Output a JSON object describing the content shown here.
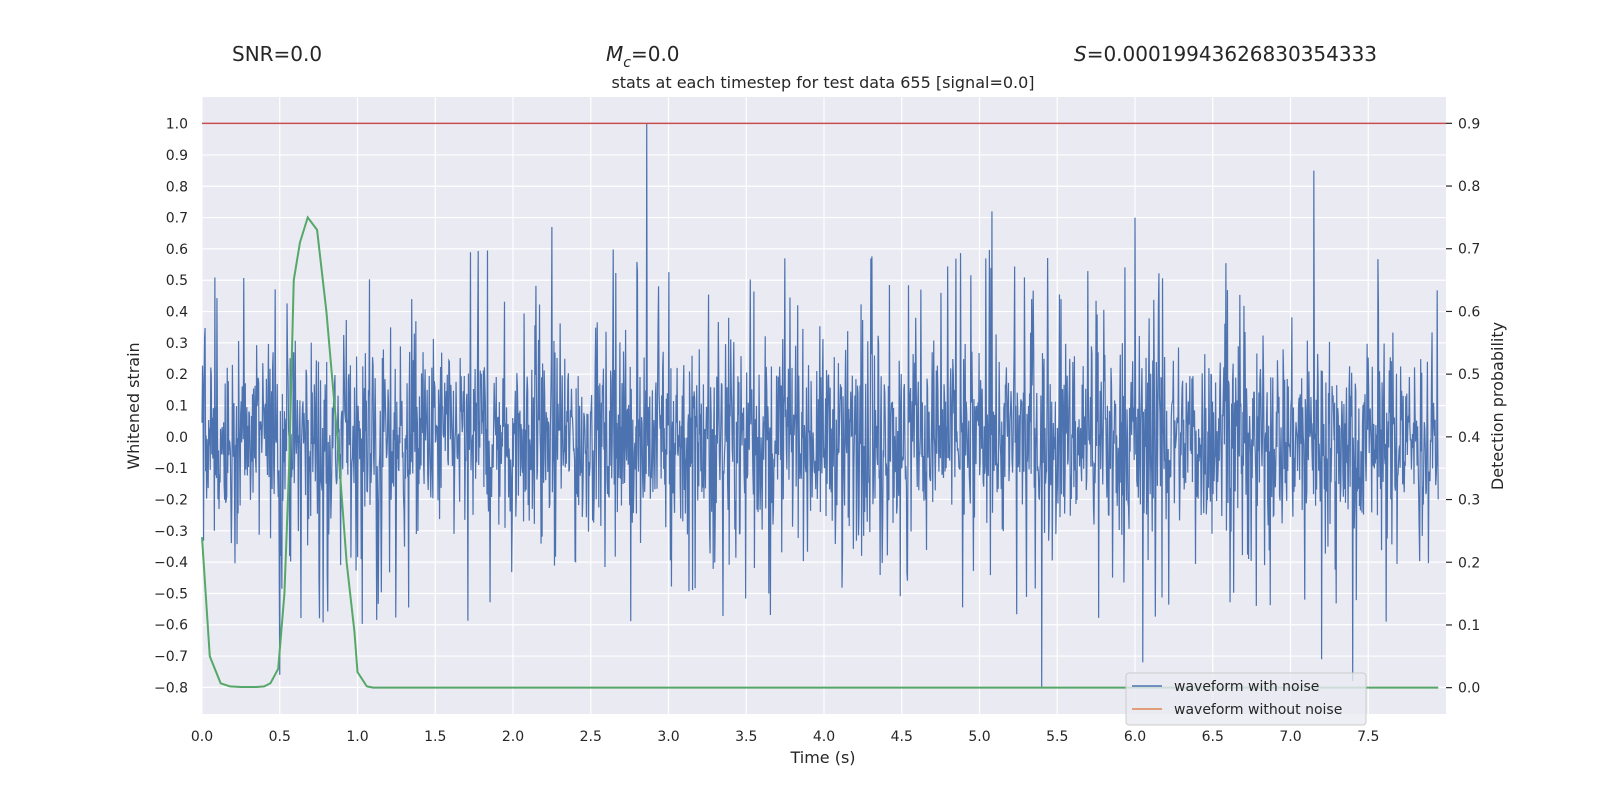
{
  "chart_data": {
    "type": "line",
    "title": "stats at each timestep for test data 655 [signal=0.0]",
    "header": {
      "snr_label": "SNR=0.0",
      "mc_prefix": "M",
      "mc_sub": "c",
      "mc_value": "=0.0",
      "s_prefix": "S",
      "s_value": "=0.00019943626830354333"
    },
    "xlabel": "Time (s)",
    "ylabel": "Whitened strain",
    "y2label": "Detection probability",
    "xlim": [
      0.0,
      8.0
    ],
    "ylim": [
      -0.885,
      1.085
    ],
    "y2lim": [
      -0.042,
      0.942
    ],
    "xticks": [
      0.0,
      0.5,
      1.0,
      1.5,
      2.0,
      2.5,
      3.0,
      3.5,
      4.0,
      4.5,
      5.0,
      5.5,
      6.0,
      6.5,
      7.0,
      7.5
    ],
    "xtick_labels": [
      "0.0",
      "0.5",
      "1.0",
      "1.5",
      "2.0",
      "2.5",
      "3.0",
      "3.5",
      "4.0",
      "4.5",
      "5.0",
      "5.5",
      "6.0",
      "6.5",
      "7.0",
      "7.5"
    ],
    "yticks": [
      1.0,
      0.9,
      0.8,
      0.7,
      0.6,
      0.5,
      0.4,
      0.3,
      0.2,
      0.1,
      0.0,
      -0.1,
      -0.2,
      -0.3,
      -0.4,
      -0.5,
      -0.6,
      -0.7,
      -0.8
    ],
    "ytick_labels": [
      "1.0",
      "0.9",
      "0.8",
      "0.7",
      "0.6",
      "0.5",
      "0.4",
      "0.3",
      "0.2",
      "0.1",
      "0.0",
      "−0.1",
      "−0.2",
      "−0.3",
      "−0.4",
      "−0.5",
      "−0.6",
      "−0.7",
      "−0.8"
    ],
    "y2ticks": [
      0.9,
      0.8,
      0.7,
      0.6,
      0.5,
      0.4,
      0.3,
      0.2,
      0.1,
      0.0
    ],
    "y2tick_labels": [
      "0.9",
      "0.8",
      "0.7",
      "0.6",
      "0.5",
      "0.4",
      "0.3",
      "0.2",
      "0.1",
      "0.0"
    ],
    "threshold": {
      "y2": 0.9,
      "color": "#c44e52"
    },
    "series": [
      {
        "name": "waveform with noise",
        "axis": "left",
        "color": "#4c72b0",
        "envelope": {
          "t_start": 0.0,
          "t_end": 7.95,
          "typical_amplitude": 0.4,
          "peak_max": 1.0,
          "peak_min": -0.8
        },
        "notable_peaks": [
          {
            "x": 2.86,
            "y": 1.0
          },
          {
            "x": 7.15,
            "y": 0.85
          },
          {
            "x": 5.08,
            "y": 0.72
          },
          {
            "x": 6.0,
            "y": 0.7
          },
          {
            "x": 2.25,
            "y": 0.67
          },
          {
            "x": 5.4,
            "y": -0.8
          },
          {
            "x": 7.4,
            "y": -0.78
          },
          {
            "x": 6.05,
            "y": -0.72
          },
          {
            "x": 7.2,
            "y": -0.71
          },
          {
            "x": 0.5,
            "y": -0.76
          }
        ]
      },
      {
        "name": "waveform without noise",
        "axis": "left",
        "color": "#dd8452",
        "x": [],
        "y": []
      },
      {
        "name": "detection probability",
        "axis": "right",
        "color": "#55a868",
        "x": [
          0.0,
          0.05,
          0.12,
          0.18,
          0.25,
          0.3,
          0.35,
          0.4,
          0.44,
          0.49,
          0.53,
          0.56,
          0.59,
          0.63,
          0.68,
          0.74,
          0.8,
          0.87,
          0.93,
          0.98,
          1.0,
          1.06,
          1.1,
          1.2,
          2.0,
          3.0,
          4.0,
          5.0,
          6.0,
          7.0,
          7.95
        ],
        "y": [
          0.24,
          0.05,
          0.007,
          0.002,
          0.001,
          0.001,
          0.001,
          0.002,
          0.007,
          0.03,
          0.15,
          0.35,
          0.65,
          0.71,
          0.75,
          0.73,
          0.6,
          0.4,
          0.2,
          0.09,
          0.025,
          0.002,
          0.0,
          0.0,
          0.0,
          0.0,
          0.0,
          0.0,
          0.0,
          0.0,
          0.0
        ]
      }
    ],
    "legend": {
      "position": "lower-right",
      "entries": [
        {
          "label": "waveform with noise",
          "color": "#4c72b0"
        },
        {
          "label": "waveform without noise",
          "color": "#dd8452"
        }
      ]
    },
    "colors": {
      "plot_bg": "#eaeaf2",
      "grid": "#ffffff"
    }
  }
}
